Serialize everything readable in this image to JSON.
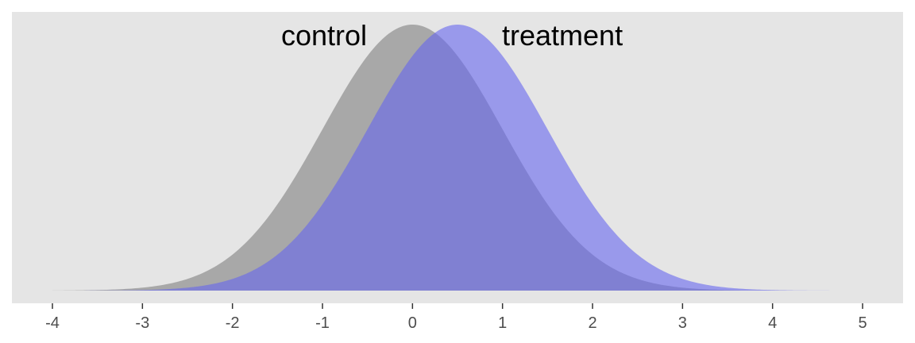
{
  "chart_data": {
    "type": "area",
    "title": "",
    "xlabel": "",
    "ylabel": "",
    "xlim": [
      -4.45,
      5.45
    ],
    "ylim": [
      0,
      0.42
    ],
    "x_ticks": [
      -4,
      -3,
      -2,
      -1,
      0,
      1,
      2,
      3,
      4,
      5
    ],
    "x_tick_labels": [
      "-4",
      "-3",
      "-2",
      "-1",
      "0",
      "1",
      "2",
      "3",
      "4",
      "5"
    ],
    "y_axis_visible": false,
    "grid": false,
    "panel_background": "#e5e5e5",
    "x_range": [
      -4,
      5
    ],
    "series": [
      {
        "name": "control",
        "distribution": "normal",
        "mean": 0,
        "sd": 1,
        "color": "#999999",
        "opacity": 0.8
      },
      {
        "name": "treatment",
        "distribution": "normal",
        "mean": 0.5,
        "sd": 1,
        "color": "#6666ee",
        "opacity": 0.6
      }
    ]
  }
}
